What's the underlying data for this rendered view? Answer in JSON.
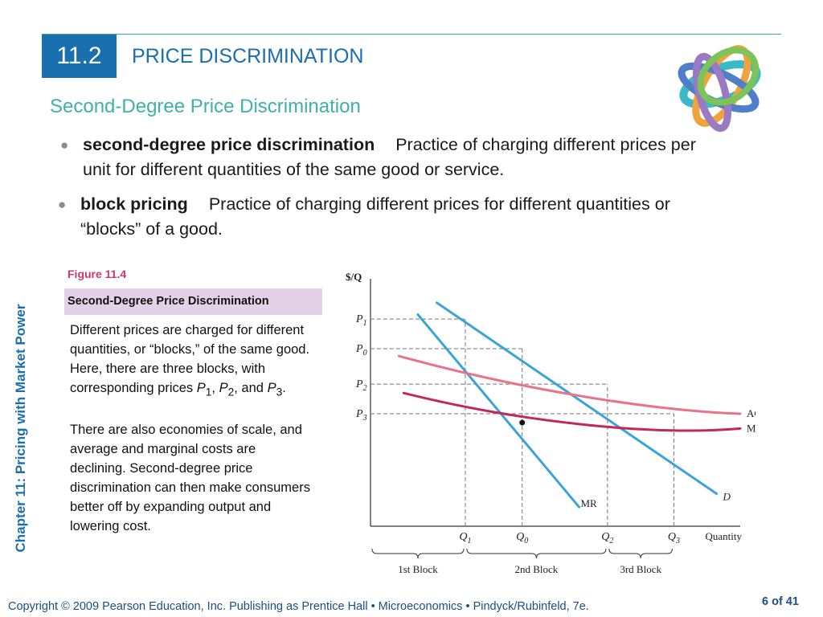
{
  "header": {
    "section_number": "11.2",
    "title": "PRICE DISCRIMINATION"
  },
  "subtitle": "Second-Degree Price Discrimination",
  "bullets": [
    {
      "term": "second-degree price discrimination",
      "definition": "Practice of charging different prices per unit for different quantities of the same good or service."
    },
    {
      "term": "block pricing",
      "definition": "Practice of charging different prices for different quantities or “blocks” of a good."
    }
  ],
  "figure": {
    "label": "Figure 11.4",
    "title": "Second-Degree Price Discrimination",
    "desc1_html": "Different prices are charged for different quantities, or “blocks,” of the same good.  Here, there are three blocks, with corresponding prices <i>P</i><sub>1</sub>, <i>P</i><sub>2</sub>, and <i>P</i><sub>3</sub>.",
    "desc2": "There are also economies of scale, and average and marginal costs are declining.  Second-degree price discrimination can then make consumers better off by expanding output and lowering cost."
  },
  "side_label": "Chapter 11: Pricing with Market Power",
  "footer": {
    "copyright": "Copyright © 2009 Pearson Education, Inc. Publishing as Prentice Hall  •  Microeconomics  •  Pindyck/Rubinfeld, 7e.",
    "page": "6 of 41"
  },
  "colors": {
    "accent_blue": "#1a6fae",
    "teal": "#3fb1a6",
    "demand": "#3aa3d9",
    "ac": "#e9748a",
    "mc": "#c0295a",
    "figure_box": "#e3d1e8"
  },
  "chart_data": {
    "type": "line",
    "ylabel": "$/Q",
    "xlabel": "Quantity",
    "y_ticks": [
      {
        "label": "P",
        "sub": "1",
        "value": 1
      },
      {
        "label": "P",
        "sub": "0",
        "value": 0.8
      },
      {
        "label": "P",
        "sub": "2",
        "value": 0.56
      },
      {
        "label": "P",
        "sub": "3",
        "value": 0.36
      }
    ],
    "x_ticks": [
      {
        "label": "Q",
        "sub": "1",
        "value": 1
      },
      {
        "label": "Q",
        "sub": "0",
        "value": 1.6
      },
      {
        "label": "Q",
        "sub": "2",
        "value": 2.5
      },
      {
        "label": "Q",
        "sub": "3",
        "value": 3.2
      }
    ],
    "xlim": [
      0,
      3.9
    ],
    "ylim": [
      -0.4,
      1.12
    ],
    "series": [
      {
        "name": "D",
        "kind": "line",
        "color": "#3aa3d9",
        "points": [
          [
            0.7,
            1.11
          ],
          [
            3.65,
            -0.18
          ]
        ]
      },
      {
        "name": "MR",
        "kind": "line",
        "color": "#3aa3d9",
        "points": [
          [
            0.5,
            1.03
          ],
          [
            2.2,
            -0.27
          ]
        ]
      },
      {
        "name": "AC",
        "kind": "curve",
        "color": "#e9748a",
        "points": [
          [
            0.3,
            0.75
          ],
          [
            1.6,
            0.52
          ],
          [
            3.0,
            0.38
          ],
          [
            3.9,
            0.36
          ]
        ]
      },
      {
        "name": "MC",
        "kind": "curve",
        "color": "#c0295a",
        "points": [
          [
            0.35,
            0.5
          ],
          [
            1.6,
            0.3
          ],
          [
            3.0,
            0.21
          ],
          [
            3.9,
            0.26
          ]
        ]
      }
    ],
    "blocks": [
      {
        "label": "1st Block",
        "from": 0,
        "to": 1
      },
      {
        "label": "2nd Block",
        "from": 1,
        "to": 2.5
      },
      {
        "label": "3rd Block",
        "from": 2.5,
        "to": 3.2
      }
    ]
  }
}
